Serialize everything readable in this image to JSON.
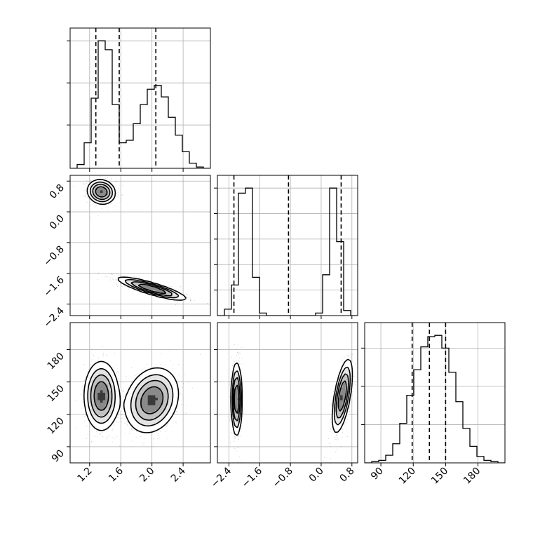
{
  "chart_data": {
    "type": "corner",
    "parameters": [
      {
        "name": "",
        "ticks": [
          1.2,
          1.6,
          2.0,
          2.4
        ],
        "range": [
          0.95,
          2.75
        ]
      },
      {
        "name": "",
        "ticks": [
          -2.4,
          -1.6,
          -0.8,
          0.0,
          0.8
        ],
        "range": [
          -2.7,
          0.95
        ]
      },
      {
        "name": "",
        "ticks": [
          90,
          120,
          150,
          180
        ],
        "range": [
          75,
          205
        ]
      }
    ],
    "tick_labels": {
      "p0": [
        "1.2",
        "1.6",
        "2.0",
        "2.4"
      ],
      "p1": [
        "−2.4",
        "−1.6",
        "−0.8",
        "0.0",
        "0.8"
      ],
      "p2": [
        "90",
        "120",
        "150",
        "180"
      ]
    },
    "quantiles": {
      "p0": [
        1.28,
        1.58,
        2.05
      ],
      "p1": [
        -2.27,
        -0.85,
        0.52
      ],
      "p2": [
        119,
        135,
        150
      ]
    },
    "histograms": {
      "p0": {
        "edges_start": 0.95,
        "bin_width": 0.09,
        "counts": [
          0.0,
          0.03,
          0.2,
          0.55,
          1.0,
          0.93,
          0.5,
          0.2,
          0.22,
          0.35,
          0.5,
          0.62,
          0.65,
          0.56,
          0.4,
          0.26,
          0.13,
          0.04,
          0.01,
          0.0
        ]
      },
      "p1": {
        "edges_start": -2.7,
        "bin_width": 0.1825,
        "counts": [
          0.0,
          0.05,
          0.24,
          0.96,
          1.0,
          0.3,
          0.02,
          0,
          0,
          0,
          0,
          0,
          0,
          0,
          0.02,
          0.32,
          1.0,
          0.58,
          0.04,
          0.0
        ]
      },
      "p2": {
        "edges_start": 75,
        "bin_width": 6.5,
        "counts": [
          0.0,
          0.01,
          0.02,
          0.06,
          0.15,
          0.31,
          0.53,
          0.73,
          0.91,
          0.99,
          1.0,
          0.9,
          0.71,
          0.48,
          0.27,
          0.13,
          0.05,
          0.02,
          0.01,
          0.0
        ]
      }
    },
    "histogram_ylim": [
      0,
      1.1
    ],
    "histogram_ticks": {
      "p0": [
        0.34,
        0.67,
        1.0
      ],
      "p1": [
        0.2,
        0.4,
        0.6,
        0.8,
        1.0
      ],
      "p2": [
        0.3,
        0.6,
        0.9
      ]
    },
    "modes": {
      "p0_p1": [
        {
          "center": [
            1.35,
            0.52
          ],
          "sigma": [
            0.09,
            0.16
          ],
          "rho": -0.1,
          "weight": 1.0
        },
        {
          "center": [
            2.0,
            -2.0
          ],
          "sigma": [
            0.22,
            0.15
          ],
          "rho": -0.85,
          "weight": 1.0
        }
      ],
      "p0_p2": [
        {
          "center": [
            1.35,
            137
          ],
          "sigma": [
            0.11,
            16
          ],
          "rho": 0.0,
          "weight": 1.0
        },
        {
          "center": [
            2.0,
            133
          ],
          "sigma": [
            0.17,
            15
          ],
          "rho": 0.2,
          "weight": 1.0
        }
      ],
      "p1_p2": [
        {
          "center": [
            -2.2,
            134
          ],
          "sigma": [
            0.07,
            17
          ],
          "rho": 0.0,
          "weight": 1.0
        },
        {
          "center": [
            0.55,
            137
          ],
          "sigma": [
            0.13,
            17
          ],
          "rho": 0.6,
          "weight": 1.0
        }
      ]
    },
    "grid": true
  }
}
